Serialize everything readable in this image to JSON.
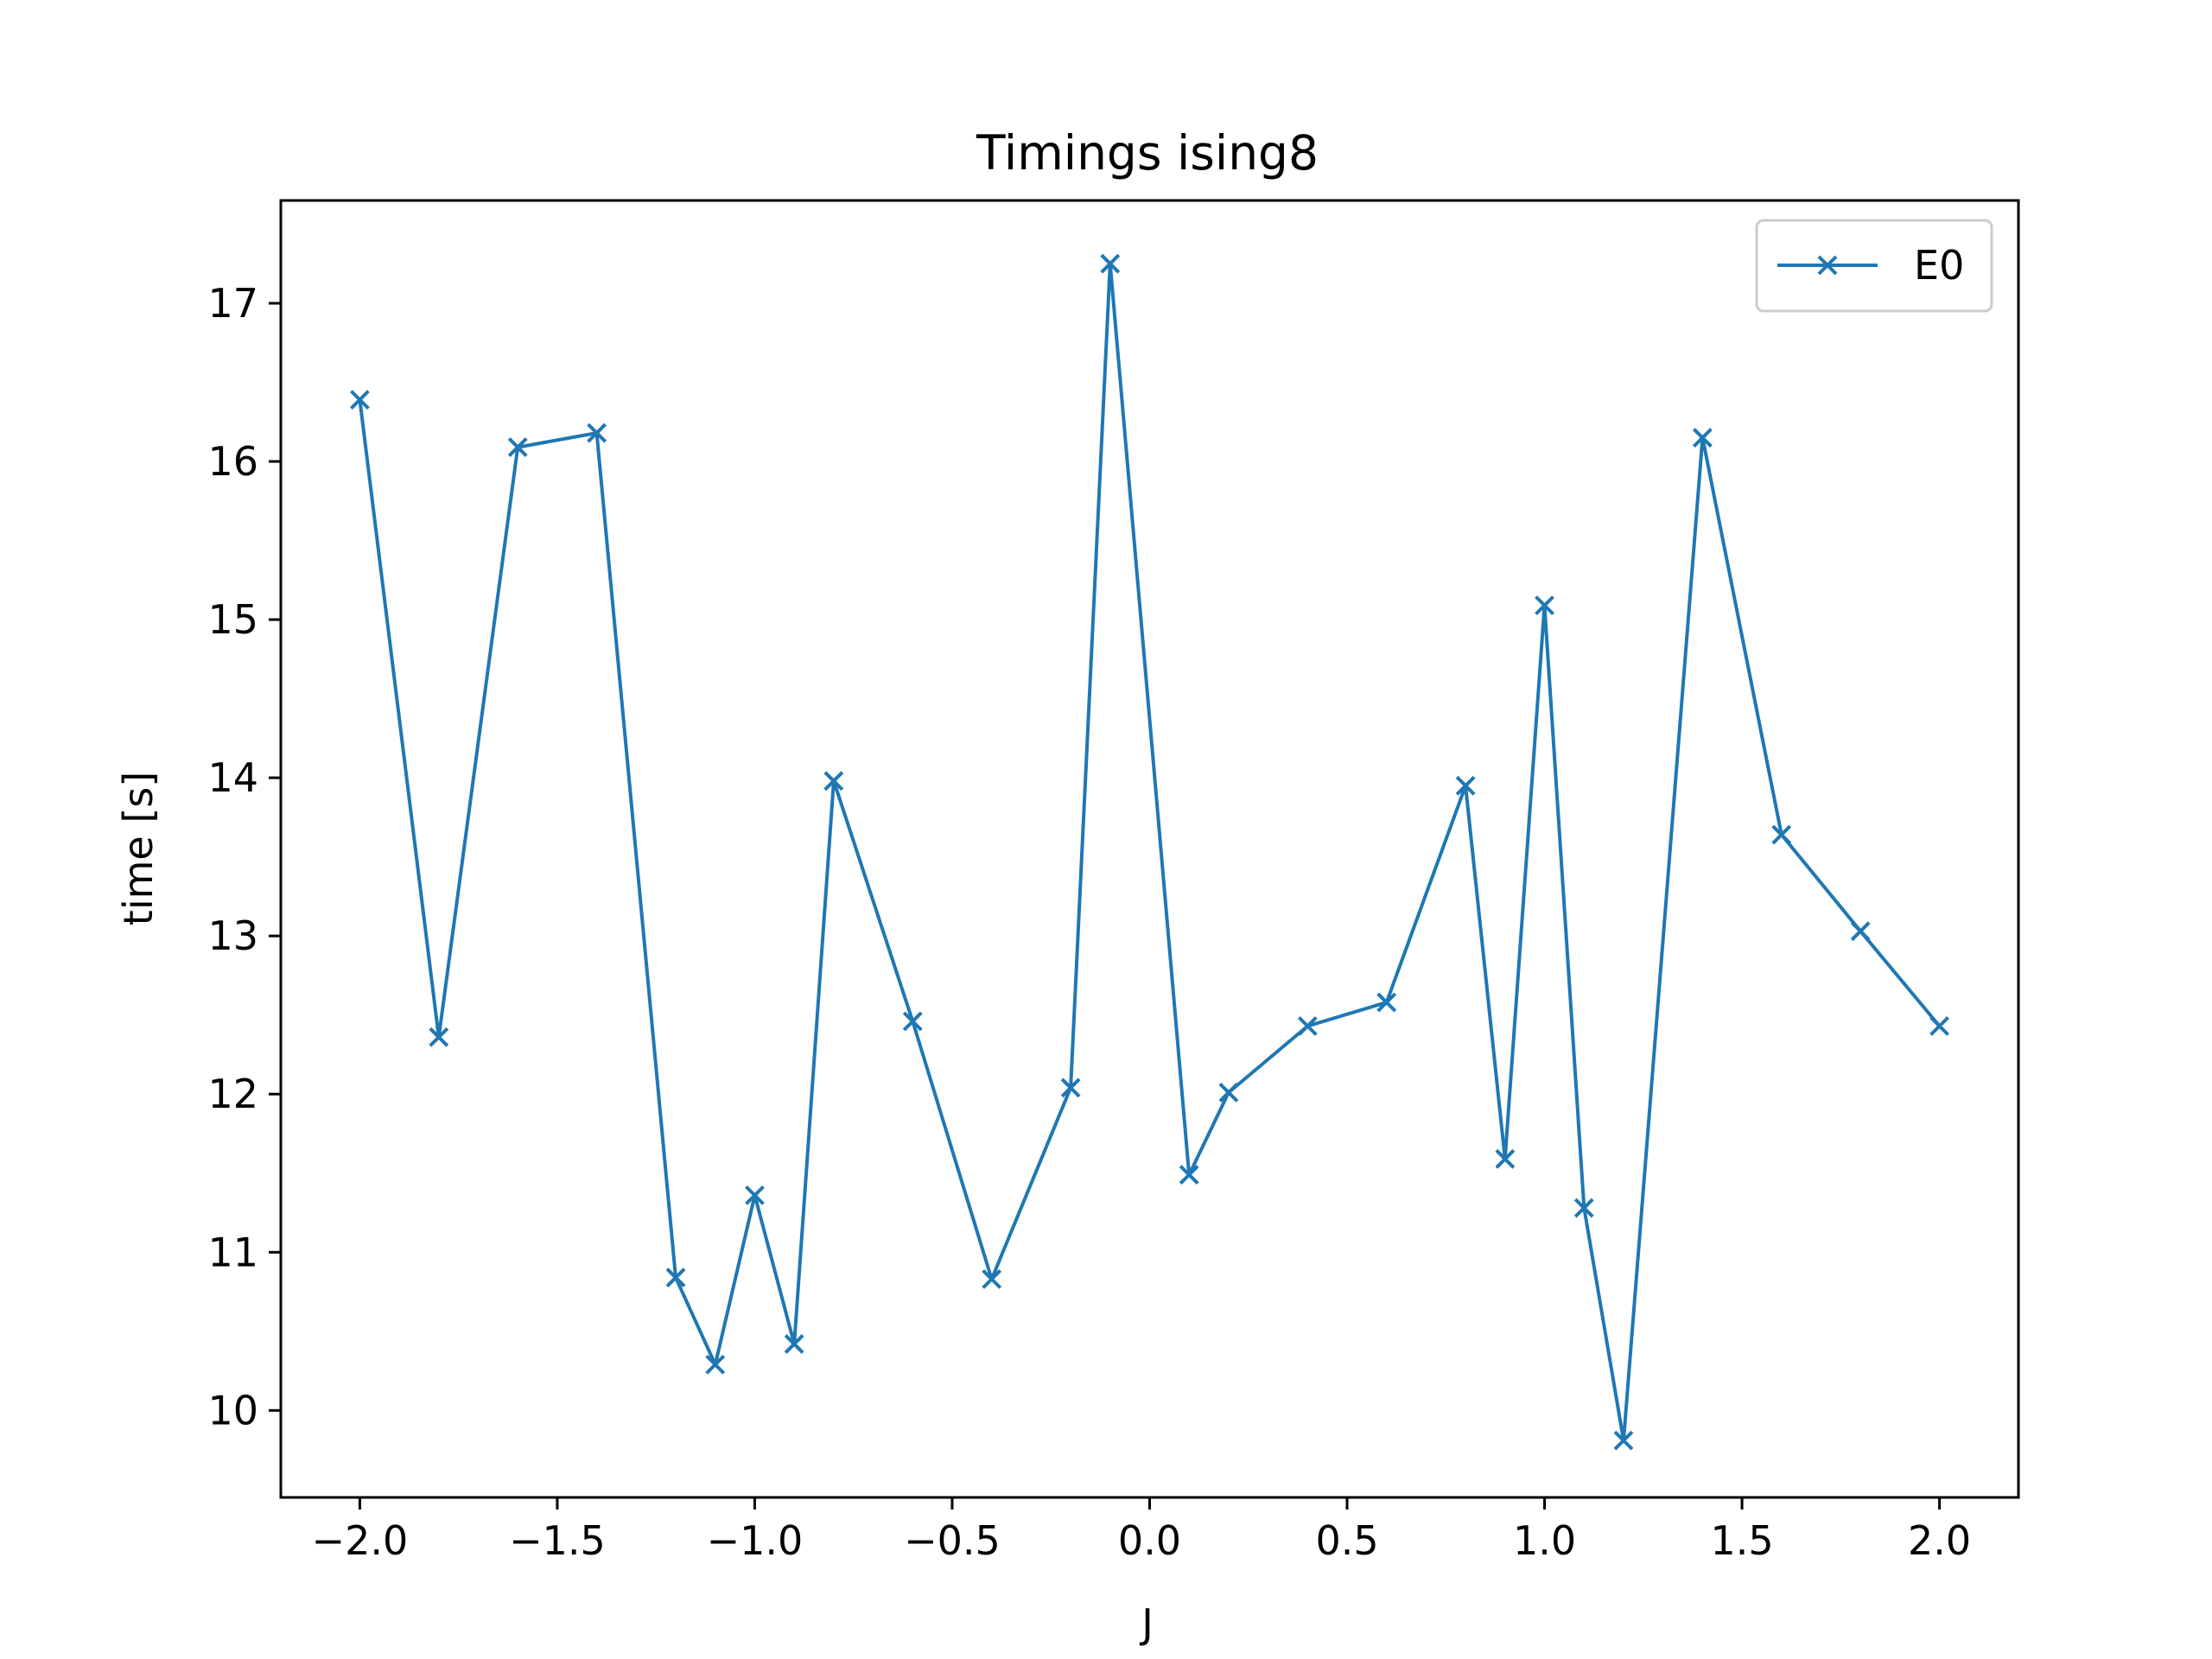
{
  "chart_data": {
    "type": "line",
    "title": "Timings ising8",
    "xlabel": "J",
    "ylabel": "time [s]",
    "xlim": [
      -2.2,
      2.2
    ],
    "ylim": [
      9.45,
      17.65
    ],
    "xticks": [
      -2.0,
      -1.5,
      -1.0,
      -0.5,
      0.0,
      0.5,
      1.0,
      1.5,
      2.0
    ],
    "xtick_labels": [
      "−2.0",
      "−1.5",
      "−1.0",
      "−0.5",
      "0.0",
      "0.5",
      "1.0",
      "1.5",
      "2.0"
    ],
    "yticks": [
      10,
      11,
      12,
      13,
      14,
      15,
      16,
      17
    ],
    "ytick_labels": [
      "10",
      "11",
      "12",
      "13",
      "14",
      "15",
      "16",
      "17"
    ],
    "grid": false,
    "legend_position": "top-right",
    "series": [
      {
        "name": "E0",
        "color": "#1f77b4",
        "marker": "x",
        "x": [
          -2.0,
          -1.8,
          -1.6,
          -1.4,
          -1.2,
          -1.1,
          -1.0,
          -0.9,
          -0.8,
          -0.6,
          -0.4,
          -0.2,
          -0.1,
          0.1,
          0.2,
          0.4,
          0.6,
          0.8,
          0.9,
          1.0,
          1.1,
          1.2,
          1.4,
          1.6,
          1.8,
          2.0
        ],
        "y": [
          16.39,
          12.36,
          16.09,
          16.18,
          10.84,
          10.29,
          11.36,
          10.42,
          13.98,
          12.46,
          10.83,
          12.04,
          17.25,
          11.49,
          12.01,
          12.43,
          12.58,
          13.95,
          11.59,
          15.09,
          11.28,
          9.81,
          16.15,
          13.64,
          13.03,
          12.43
        ]
      }
    ]
  }
}
